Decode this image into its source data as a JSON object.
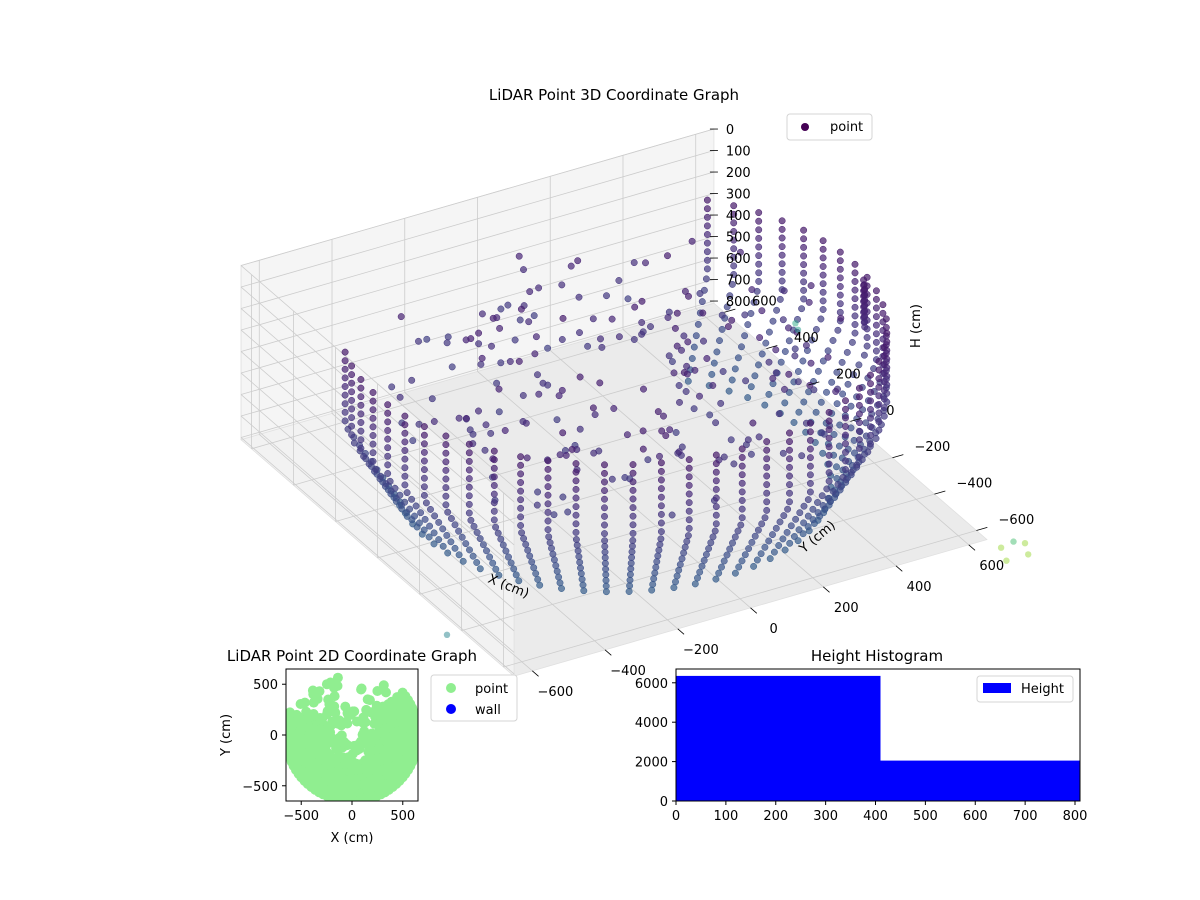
{
  "colors": {
    "viridis_dark": "#440154",
    "viridis_purple": "#472d7b",
    "viridis_blue": "#3b528b",
    "viridis_teal": "#21918c",
    "viridis_light": "#90d743",
    "point_2d": "#90ee90",
    "wall": "#0000ff",
    "histogram": "#0000ff",
    "pane": "#f2f2f2",
    "grid": "#cccccc"
  },
  "chart_data": [
    {
      "type": "scatter",
      "projection": "3d",
      "title": "LiDAR Point 3D Coordinate Graph",
      "xlabel": "X (cm)",
      "ylabel": "Y (cm)",
      "zlabel": "H (cm)",
      "x_ticks": [
        "−600",
        "−400",
        "−200",
        "0",
        "200",
        "400",
        "600"
      ],
      "y_ticks": [
        "−600",
        "−400",
        "−200",
        "0",
        "200",
        "400",
        "600"
      ],
      "z_ticks": [
        "0",
        "100",
        "200",
        "300",
        "400",
        "500",
        "600",
        "700",
        "800"
      ],
      "xlim": [
        -650,
        650
      ],
      "ylim": [
        -650,
        650
      ],
      "zlim": [
        0,
        810
      ],
      "z_inverted": true,
      "legend": {
        "position": "top-right",
        "labels": [
          "point"
        ]
      },
      "series": [
        {
          "name": "point",
          "description_shape": "cylindrical wall ring of radius ~650 cm, open on the near side, points colored by height (viridis)",
          "sample_points": [
            {
              "x": -650,
              "y": 0,
              "h": 300
            },
            {
              "x": -600,
              "y": 250,
              "h": 300
            },
            {
              "x": -450,
              "y": 450,
              "h": 300
            },
            {
              "x": -250,
              "y": 600,
              "h": 300
            },
            {
              "x": 0,
              "y": 650,
              "h": 300
            },
            {
              "x": 250,
              "y": 600,
              "h": 300
            },
            {
              "x": 450,
              "y": 450,
              "h": 300
            },
            {
              "x": 600,
              "y": 250,
              "h": 300
            },
            {
              "x": 650,
              "y": 0,
              "h": 300
            }
          ]
        }
      ]
    },
    {
      "type": "scatter",
      "title": "LiDAR Point 2D Coordinate Graph",
      "xlabel": "X (cm)",
      "ylabel": "Y (cm)",
      "x_ticks": [
        "−500",
        "0",
        "500"
      ],
      "y_ticks": [
        "500",
        "0",
        "−500"
      ],
      "xlim": [
        -650,
        650
      ],
      "ylim": [
        -650,
        650
      ],
      "legend": {
        "position": "right-outside",
        "labels": [
          "point",
          "wall"
        ]
      }
    },
    {
      "type": "bar",
      "title": "Height Histogram",
      "x_ticks": [
        "0",
        "100",
        "200",
        "300",
        "400",
        "500",
        "600",
        "700",
        "800"
      ],
      "y_ticks": [
        "0",
        "2000",
        "4000",
        "6000"
      ],
      "xlim": [
        0,
        810
      ],
      "ylim": [
        0,
        6700
      ],
      "legend": {
        "position": "top-right",
        "labels": [
          "Height"
        ]
      },
      "bins": [
        {
          "start": 0,
          "end": 410,
          "count": 6350
        },
        {
          "start": 410,
          "end": 810,
          "count": 2050
        }
      ]
    }
  ]
}
